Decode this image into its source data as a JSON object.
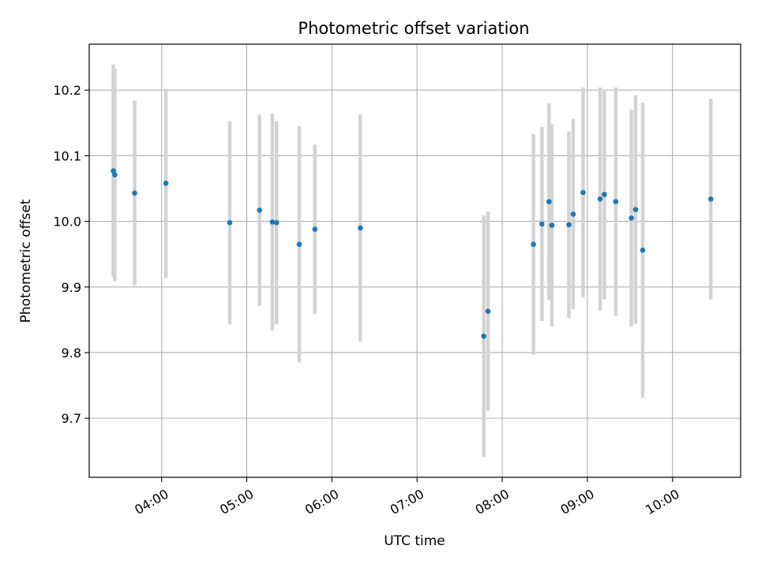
{
  "chart_data": {
    "type": "scatter",
    "title": "Photometric offset variation",
    "xlabel": "UTC time",
    "ylabel": "Photometric offset",
    "x_unit": "UTC time (HH:MM)",
    "xlim": [
      "03:09",
      "10:48"
    ],
    "ylim": [
      9.61,
      10.27
    ],
    "x_ticks": [
      "04:00",
      "05:00",
      "06:00",
      "07:00",
      "08:00",
      "09:00",
      "10:00"
    ],
    "y_ticks": [
      9.7,
      9.8,
      9.9,
      10.0,
      10.1,
      10.2
    ],
    "y_tick_labels": [
      "9.7",
      "9.8",
      "9.9",
      "10.0",
      "10.1",
      "10.2"
    ],
    "grid": true,
    "colors": {
      "points": "#1f77b4",
      "errorbars": "#d3d3d3",
      "grid": "#b0b0b0",
      "axes": "#000000"
    },
    "points": [
      {
        "x": "03:26",
        "y": 10.077,
        "err": 0.162
      },
      {
        "x": "03:27",
        "y": 10.071,
        "err": 0.162
      },
      {
        "x": "03:41",
        "y": 10.043,
        "err": 0.141
      },
      {
        "x": "04:03",
        "y": 10.058,
        "err": 0.144
      },
      {
        "x": "04:48",
        "y": 9.998,
        "err": 0.155
      },
      {
        "x": "05:09",
        "y": 10.017,
        "err": 0.146
      },
      {
        "x": "05:18",
        "y": 9.999,
        "err": 0.165
      },
      {
        "x": "05:21",
        "y": 9.998,
        "err": 0.155
      },
      {
        "x": "05:37",
        "y": 9.965,
        "err": 0.18
      },
      {
        "x": "05:48",
        "y": 9.988,
        "err": 0.129
      },
      {
        "x": "06:20",
        "y": 9.99,
        "err": 0.173
      },
      {
        "x": "07:47",
        "y": 9.825,
        "err": 0.184
      },
      {
        "x": "07:50",
        "y": 9.863,
        "err": 0.152
      },
      {
        "x": "08:22",
        "y": 9.965,
        "err": 0.168
      },
      {
        "x": "08:28",
        "y": 9.996,
        "err": 0.148
      },
      {
        "x": "08:33",
        "y": 10.03,
        "err": 0.15
      },
      {
        "x": "08:35",
        "y": 9.994,
        "err": 0.154
      },
      {
        "x": "08:47",
        "y": 9.995,
        "err": 0.142
      },
      {
        "x": "08:50",
        "y": 10.011,
        "err": 0.145
      },
      {
        "x": "08:57",
        "y": 10.044,
        "err": 0.16
      },
      {
        "x": "09:09",
        "y": 10.034,
        "err": 0.17
      },
      {
        "x": "09:12",
        "y": 10.041,
        "err": 0.16
      },
      {
        "x": "09:20",
        "y": 10.03,
        "err": 0.174
      },
      {
        "x": "09:31",
        "y": 10.005,
        "err": 0.165
      },
      {
        "x": "09:34",
        "y": 10.018,
        "err": 0.174
      },
      {
        "x": "09:39",
        "y": 9.956,
        "err": 0.225
      },
      {
        "x": "10:27",
        "y": 10.034,
        "err": 0.153
      }
    ]
  }
}
